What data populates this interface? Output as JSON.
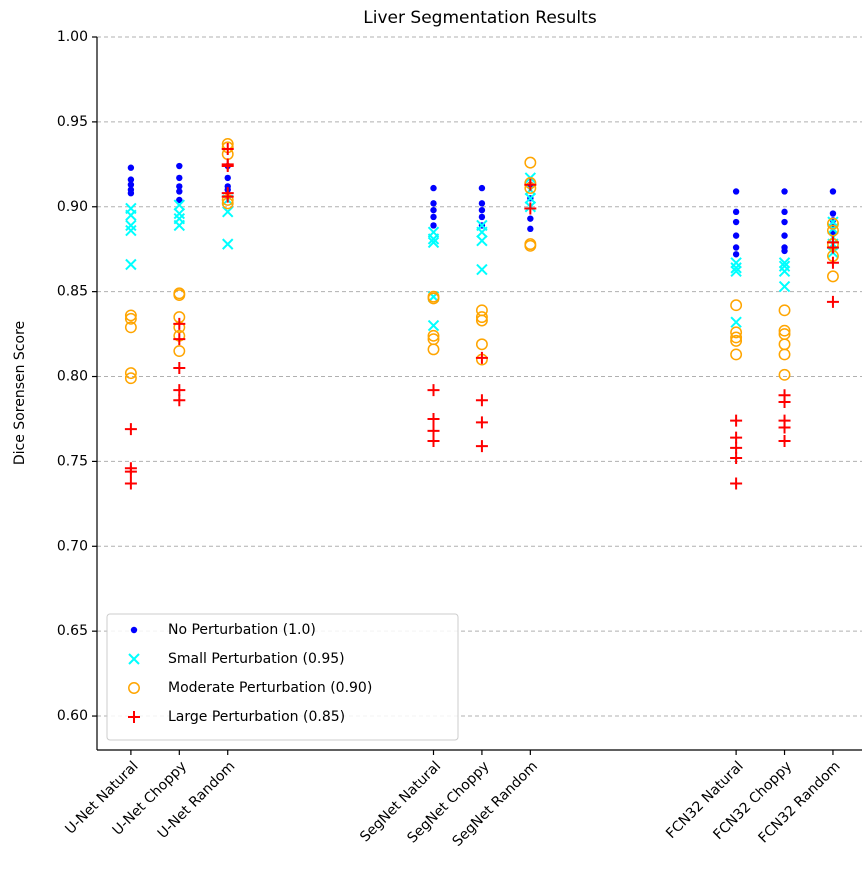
{
  "chart_data": {
    "type": "scatter",
    "title": "Liver Segmentation Results",
    "y_label": "Dice Sorensen Score",
    "ylim": [
      0.58,
      1.0
    ],
    "yticks": [
      {
        "value": 0.6,
        "label": "0.60"
      },
      0.65,
      {
        "value": 0.7,
        "label": "0.70"
      },
      0.75,
      {
        "value": 0.8,
        "label": "0.80"
      },
      0.85,
      {
        "value": 0.9,
        "label": "0.90"
      },
      0.95,
      {
        "value": 1.0,
        "label": "1.00"
      }
    ],
    "xlim": [
      -0.7,
      15.1
    ],
    "xticks": [
      {
        "value": 0,
        "label": "U-Net Natural"
      },
      {
        "value": 1,
        "label": "U-Net Choppy"
      },
      {
        "value": 2,
        "label": "U-Net Random"
      },
      {
        "value": 6.25,
        "label": "SegNet Natural"
      },
      {
        "value": 7.25,
        "label": "SegNet Choppy"
      },
      {
        "value": 8.25,
        "label": "SegNet Random"
      },
      {
        "value": 12.5,
        "label": "FCN32 Natural"
      },
      {
        "value": 13.5,
        "label": "FCN32 Choppy"
      },
      {
        "value": 14.5,
        "label": "FCN32 Random"
      }
    ],
    "grid": true,
    "legend": "lower left",
    "series": [
      {
        "name": "No Perturbation (1.0)",
        "color": "#0000ff",
        "marker": "dot",
        "x": [
          0,
          0,
          0,
          0,
          0,
          1,
          1,
          1,
          1,
          1,
          2,
          2,
          2,
          2,
          6.25,
          6.25,
          6.25,
          6.25,
          6.25,
          7.25,
          7.25,
          7.25,
          7.25,
          7.25,
          8.25,
          8.25,
          8.25,
          8.25,
          12.5,
          12.5,
          12.5,
          12.5,
          12.5,
          12.5,
          13.5,
          13.5,
          13.5,
          13.5,
          13.5,
          13.5,
          14.5,
          14.5,
          14.5,
          14.5,
          14.5
        ],
        "values": [
          0.923,
          0.916,
          0.913,
          0.91,
          0.908,
          0.924,
          0.917,
          0.912,
          0.909,
          0.904,
          0.924,
          0.917,
          0.912,
          0.91,
          0.911,
          0.902,
          0.898,
          0.894,
          0.889,
          0.911,
          0.902,
          0.898,
          0.894,
          0.889,
          0.913,
          0.905,
          0.893,
          0.887,
          0.909,
          0.897,
          0.891,
          0.883,
          0.876,
          0.872,
          0.909,
          0.897,
          0.891,
          0.883,
          0.876,
          0.874,
          0.909,
          0.896,
          0.892,
          0.888,
          0.885
        ]
      },
      {
        "name": "Small Perturbation (0.95)",
        "color": "#00ffff",
        "marker": "x",
        "x": [
          0,
          0,
          0,
          0,
          0,
          1,
          1,
          1,
          1,
          2,
          2,
          2,
          6.25,
          6.25,
          6.25,
          6.25,
          6.25,
          7.25,
          7.25,
          7.25,
          7.25,
          8.25,
          8.25,
          8.25,
          8.25,
          12.5,
          12.5,
          12.5,
          12.5,
          13.5,
          13.5,
          13.5,
          13.5,
          14.5,
          14.5,
          14.5,
          14.5,
          14.5
        ],
        "values": [
          0.899,
          0.895,
          0.889,
          0.886,
          0.866,
          0.901,
          0.896,
          0.893,
          0.889,
          0.904,
          0.897,
          0.878,
          0.885,
          0.881,
          0.879,
          0.847,
          0.83,
          0.889,
          0.885,
          0.88,
          0.863,
          0.917,
          0.91,
          0.905,
          0.9,
          0.867,
          0.864,
          0.862,
          0.832,
          0.867,
          0.865,
          0.862,
          0.853,
          0.891,
          0.887,
          0.882,
          0.878,
          0.873
        ]
      },
      {
        "name": "Moderate Perturbation (0.90)",
        "color": "#ffa500",
        "marker": "circle",
        "x": [
          0,
          0,
          0,
          0,
          0,
          1,
          1,
          1,
          1,
          1,
          1,
          2,
          2,
          2,
          2,
          2,
          6.25,
          6.25,
          6.25,
          6.25,
          6.25,
          7.25,
          7.25,
          7.25,
          7.25,
          7.25,
          8.25,
          8.25,
          8.25,
          8.25,
          8.25,
          12.5,
          12.5,
          12.5,
          12.5,
          12.5,
          13.5,
          13.5,
          13.5,
          13.5,
          13.5,
          13.5,
          14.5,
          14.5,
          14.5,
          14.5,
          14.5
        ],
        "values": [
          0.836,
          0.834,
          0.829,
          0.802,
          0.799,
          0.849,
          0.848,
          0.835,
          0.829,
          0.824,
          0.815,
          0.937,
          0.935,
          0.931,
          0.904,
          0.902,
          0.847,
          0.846,
          0.824,
          0.822,
          0.816,
          0.839,
          0.835,
          0.833,
          0.819,
          0.81,
          0.926,
          0.914,
          0.911,
          0.878,
          0.877,
          0.842,
          0.826,
          0.823,
          0.821,
          0.813,
          0.839,
          0.827,
          0.825,
          0.819,
          0.813,
          0.801,
          0.89,
          0.886,
          0.878,
          0.871,
          0.859
        ]
      },
      {
        "name": "Large Perturbation (0.85)",
        "color": "#ff0000",
        "marker": "plus",
        "x": [
          0,
          0,
          0,
          0,
          1,
          1,
          1,
          1,
          1,
          2,
          2,
          2,
          2,
          2,
          6.25,
          6.25,
          6.25,
          6.25,
          7.25,
          7.25,
          7.25,
          7.25,
          8.25,
          8.25,
          12.5,
          12.5,
          12.5,
          12.5,
          12.5,
          13.5,
          13.5,
          13.5,
          13.5,
          13.5,
          14.5,
          14.5,
          14.5,
          14.5
        ],
        "values": [
          0.769,
          0.746,
          0.744,
          0.737,
          0.831,
          0.822,
          0.805,
          0.792,
          0.786,
          0.934,
          0.925,
          0.924,
          0.908,
          0.906,
          0.792,
          0.775,
          0.768,
          0.762,
          0.811,
          0.786,
          0.773,
          0.759,
          0.913,
          0.899,
          0.774,
          0.764,
          0.758,
          0.752,
          0.737,
          0.789,
          0.785,
          0.774,
          0.77,
          0.762,
          0.879,
          0.876,
          0.867,
          0.844
        ]
      }
    ]
  }
}
